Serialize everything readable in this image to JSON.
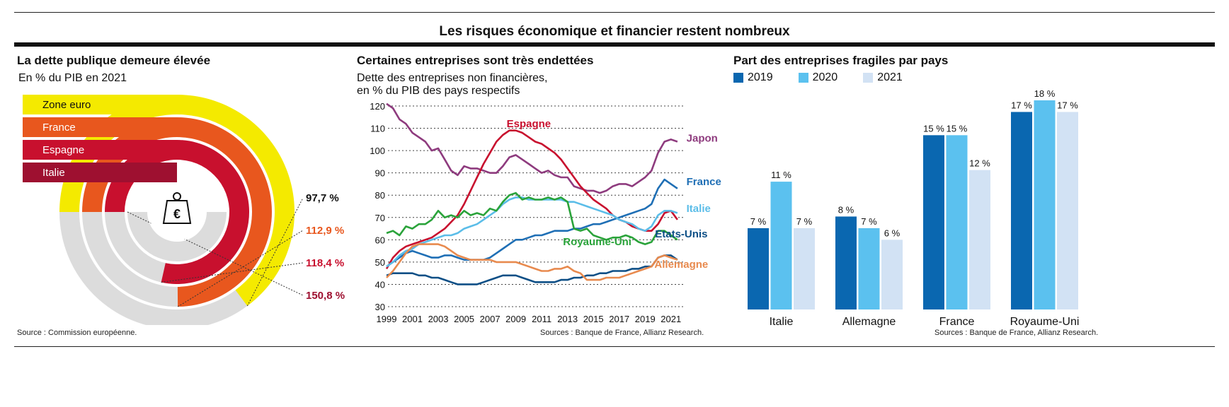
{
  "header": {
    "title": "Les risques économique et financier restent nombreux"
  },
  "panel1": {
    "title": "La dette publique demeure élevée",
    "subtitle": "En % du PIB en 2021",
    "source": "Source : Commission européenne.",
    "icon": "euro-weight-icon"
  },
  "panel2": {
    "title": "Certaines entreprises sont très endettées",
    "subtitle_line1": "Dette des entreprises non financières,",
    "subtitle_line2": "en % du PIB des pays respectifs",
    "source": "Sources : Banque de France, Allianz Research."
  },
  "panel3": {
    "title": "Part des entreprises fragiles par pays",
    "source": "Sources : Banque de France, Allianz Research."
  },
  "chart_data": [
    {
      "type": "radial-bar",
      "unit": "% du PIB",
      "max": 150.8,
      "items": [
        {
          "name": "Zone euro",
          "value": 97.7,
          "label": "97,7 %",
          "color": "#f4ea00",
          "label_color": "#111111"
        },
        {
          "name": "France",
          "value": 112.9,
          "label": "112,9 %",
          "color": "#e8571e",
          "label_color": "#e8571e"
        },
        {
          "name": "Espagne",
          "value": 118.4,
          "label": "118,4 %",
          "color": "#c8102e",
          "label_color": "#c8102e"
        },
        {
          "name": "Italie",
          "value": 150.8,
          "label": "150,8 %",
          "color": "#9e1030",
          "label_color": "#9e1030"
        }
      ]
    },
    {
      "type": "line",
      "ylim": [
        30,
        120
      ],
      "yticks": [
        30,
        40,
        50,
        60,
        70,
        80,
        90,
        100,
        110,
        120
      ],
      "xlim": [
        1999,
        2022
      ],
      "xticks": [
        "1999",
        "2001",
        "2003",
        "2005",
        "2007",
        "2009",
        "2011",
        "2013",
        "2015",
        "2017",
        "2019",
        "2021"
      ],
      "series": [
        {
          "name": "Japon",
          "color": "#8e3b7e",
          "x": [
            1999,
            1999.5,
            2000,
            2000.5,
            2001,
            2001.5,
            2002,
            2002.5,
            2003,
            2003.5,
            2004,
            2004.5,
            2005,
            2005.5,
            2006,
            2006.5,
            2007,
            2007.5,
            2008,
            2008.5,
            2009,
            2009.5,
            2010,
            2010.5,
            2011,
            2011.5,
            2012,
            2012.5,
            2013,
            2013.5,
            2014,
            2014.5,
            2015,
            2015.5,
            2016,
            2016.5,
            2017,
            2017.5,
            2018,
            2018.5,
            2019,
            2019.5,
            2020,
            2020.5,
            2021,
            2021.5
          ],
          "y": [
            121,
            119,
            114,
            112,
            108,
            106,
            104,
            100,
            101,
            96,
            91,
            89,
            93,
            92,
            92,
            91,
            90,
            90,
            93,
            97,
            98,
            96,
            94,
            92,
            90,
            91,
            89,
            88,
            88,
            84,
            83,
            82,
            82,
            81,
            82,
            84,
            85,
            85,
            84,
            86,
            88,
            91,
            99,
            104,
            105,
            104
          ]
        },
        {
          "name": "Espagne",
          "color": "#c8102e",
          "x": [
            1999,
            1999.5,
            2000,
            2000.5,
            2001,
            2001.5,
            2002,
            2002.5,
            2003,
            2003.5,
            2004,
            2004.5,
            2005,
            2005.5,
            2006,
            2006.5,
            2007,
            2007.5,
            2008,
            2008.5,
            2009,
            2009.5,
            2010,
            2010.5,
            2011,
            2011.5,
            2012,
            2012.5,
            2013,
            2013.5,
            2014,
            2014.5,
            2015,
            2015.5,
            2016,
            2016.5,
            2017,
            2017.5,
            2018,
            2018.5,
            2019,
            2019.5,
            2020,
            2020.5,
            2021,
            2021.5
          ],
          "y": [
            47,
            52,
            55,
            57,
            58,
            59,
            60,
            61,
            63,
            65,
            68,
            71,
            76,
            82,
            88,
            94,
            99,
            104,
            107,
            109,
            109,
            108,
            106,
            104,
            103,
            101,
            99,
            96,
            92,
            88,
            84,
            81,
            78,
            76,
            74,
            71,
            69,
            68,
            66,
            65,
            64,
            64,
            67,
            72,
            73,
            69
          ]
        },
        {
          "name": "France",
          "color": "#1f6fb5",
          "x": [
            1999,
            1999.5,
            2000,
            2000.5,
            2001,
            2001.5,
            2002,
            2002.5,
            2003,
            2003.5,
            2004,
            2004.5,
            2005,
            2005.5,
            2006,
            2006.5,
            2007,
            2007.5,
            2008,
            2008.5,
            2009,
            2009.5,
            2010,
            2010.5,
            2011,
            2011.5,
            2012,
            2012.5,
            2013,
            2013.5,
            2014,
            2014.5,
            2015,
            2015.5,
            2016,
            2016.5,
            2017,
            2017.5,
            2018,
            2018.5,
            2019,
            2019.5,
            2020,
            2020.5,
            2021,
            2021.5
          ],
          "y": [
            48,
            50,
            52,
            54,
            55,
            54,
            53,
            52,
            52,
            53,
            53,
            52,
            51,
            51,
            51,
            51,
            52,
            54,
            56,
            58,
            60,
            60,
            61,
            62,
            62,
            63,
            64,
            64,
            64,
            65,
            65,
            66,
            67,
            67,
            68,
            69,
            70,
            71,
            72,
            73,
            74,
            76,
            83,
            87,
            85,
            83
          ]
        },
        {
          "name": "Italie",
          "color": "#5bbde8",
          "x": [
            1999,
            1999.5,
            2000,
            2000.5,
            2001,
            2001.5,
            2002,
            2002.5,
            2003,
            2003.5,
            2004,
            2004.5,
            2005,
            2005.5,
            2006,
            2006.5,
            2007,
            2007.5,
            2008,
            2008.5,
            2009,
            2009.5,
            2010,
            2010.5,
            2011,
            2011.5,
            2012,
            2012.5,
            2013,
            2013.5,
            2014,
            2014.5,
            2015,
            2015.5,
            2016,
            2016.5,
            2017,
            2017.5,
            2018,
            2018.5,
            2019,
            2019.5,
            2020,
            2020.5,
            2021,
            2021.5
          ],
          "y": [
            48,
            50,
            53,
            55,
            56,
            58,
            59,
            60,
            61,
            62,
            62,
            63,
            65,
            66,
            67,
            69,
            71,
            73,
            76,
            78,
            79,
            79,
            78,
            78,
            78,
            78,
            78,
            78,
            77,
            77,
            76,
            75,
            74,
            73,
            72,
            71,
            69,
            68,
            67,
            65,
            64,
            66,
            71,
            73,
            73,
            72
          ]
        },
        {
          "name": "Royaume-Uni",
          "color": "#2aa33a",
          "x": [
            1999,
            1999.5,
            2000,
            2000.5,
            2001,
            2001.5,
            2002,
            2002.5,
            2003,
            2003.5,
            2004,
            2004.5,
            2005,
            2005.5,
            2006,
            2006.5,
            2007,
            2007.5,
            2008,
            2008.5,
            2009,
            2009.5,
            2010,
            2010.5,
            2011,
            2011.5,
            2012,
            2012.5,
            2013,
            2013.5,
            2014,
            2014.5,
            2015,
            2015.5,
            2016,
            2016.5,
            2017,
            2017.5,
            2018,
            2018.5,
            2019,
            2019.5,
            2020,
            2020.5,
            2021,
            2021.5
          ],
          "y": [
            63,
            64,
            62,
            66,
            65,
            67,
            67,
            69,
            73,
            70,
            71,
            70,
            73,
            71,
            72,
            71,
            74,
            73,
            77,
            80,
            81,
            78,
            79,
            78,
            78,
            79,
            78,
            79,
            77,
            65,
            64,
            65,
            62,
            61,
            60,
            61,
            61,
            62,
            61,
            59,
            58,
            59,
            64,
            64,
            62,
            60
          ]
        },
        {
          "name": "Etats-Unis",
          "color": "#0d4f86",
          "x": [
            1999,
            1999.5,
            2000,
            2000.5,
            2001,
            2001.5,
            2002,
            2002.5,
            2003,
            2003.5,
            2004,
            2004.5,
            2005,
            2005.5,
            2006,
            2006.5,
            2007,
            2007.5,
            2008,
            2008.5,
            2009,
            2009.5,
            2010,
            2010.5,
            2011,
            2011.5,
            2012,
            2012.5,
            2013,
            2013.5,
            2014,
            2014.5,
            2015,
            2015.5,
            2016,
            2016.5,
            2017,
            2017.5,
            2018,
            2018.5,
            2019,
            2019.5,
            2020,
            2020.5,
            2021,
            2021.5
          ],
          "y": [
            44,
            45,
            45,
            45,
            45,
            44,
            44,
            43,
            43,
            42,
            41,
            40,
            40,
            40,
            40,
            41,
            42,
            43,
            44,
            44,
            44,
            43,
            42,
            41,
            41,
            41,
            41,
            42,
            42,
            43,
            43,
            44,
            44,
            45,
            45,
            46,
            46,
            46,
            47,
            47,
            48,
            48,
            52,
            53,
            53,
            51
          ]
        },
        {
          "name": "Allemagne",
          "color": "#e88a4e",
          "x": [
            1999,
            1999.5,
            2000,
            2000.5,
            2001,
            2001.5,
            2002,
            2002.5,
            2003,
            2003.5,
            2004,
            2004.5,
            2005,
            2005.5,
            2006,
            2006.5,
            2007,
            2007.5,
            2008,
            2008.5,
            2009,
            2009.5,
            2010,
            2010.5,
            2011,
            2011.5,
            2012,
            2012.5,
            2013,
            2013.5,
            2014,
            2014.5,
            2015,
            2015.5,
            2016,
            2016.5,
            2017,
            2017.5,
            2018,
            2018.5,
            2019,
            2019.5,
            2020,
            2020.5,
            2021,
            2021.5
          ],
          "y": [
            43,
            46,
            50,
            54,
            57,
            58,
            58,
            58,
            58,
            57,
            55,
            53,
            52,
            51,
            51,
            51,
            51,
            50,
            50,
            50,
            50,
            49,
            48,
            47,
            46,
            46,
            47,
            47,
            48,
            46,
            45,
            42,
            42,
            42,
            43,
            43,
            43,
            44,
            45,
            46,
            47,
            48,
            52,
            53,
            52,
            51
          ]
        }
      ]
    },
    {
      "type": "bar",
      "categories": [
        "Italie",
        "Allemagne",
        "France",
        "Royaume-Uni"
      ],
      "series": [
        {
          "name": "2019",
          "color": "#0a67b0",
          "values": [
            7,
            8,
            15,
            17
          ],
          "labels": [
            "7 %",
            "8 %",
            "15 %",
            "17 %"
          ]
        },
        {
          "name": "2020",
          "color": "#5bc1ef",
          "values": [
            11,
            7,
            15,
            18
          ],
          "labels": [
            "11 %",
            "7 %",
            "15 %",
            "18 %"
          ]
        },
        {
          "name": "2021",
          "color": "#d2e2f4",
          "values": [
            7,
            6,
            12,
            17
          ],
          "labels": [
            "7 %",
            "6 %",
            "12 %",
            "17 %"
          ]
        }
      ],
      "ylim": [
        0,
        18
      ]
    }
  ]
}
